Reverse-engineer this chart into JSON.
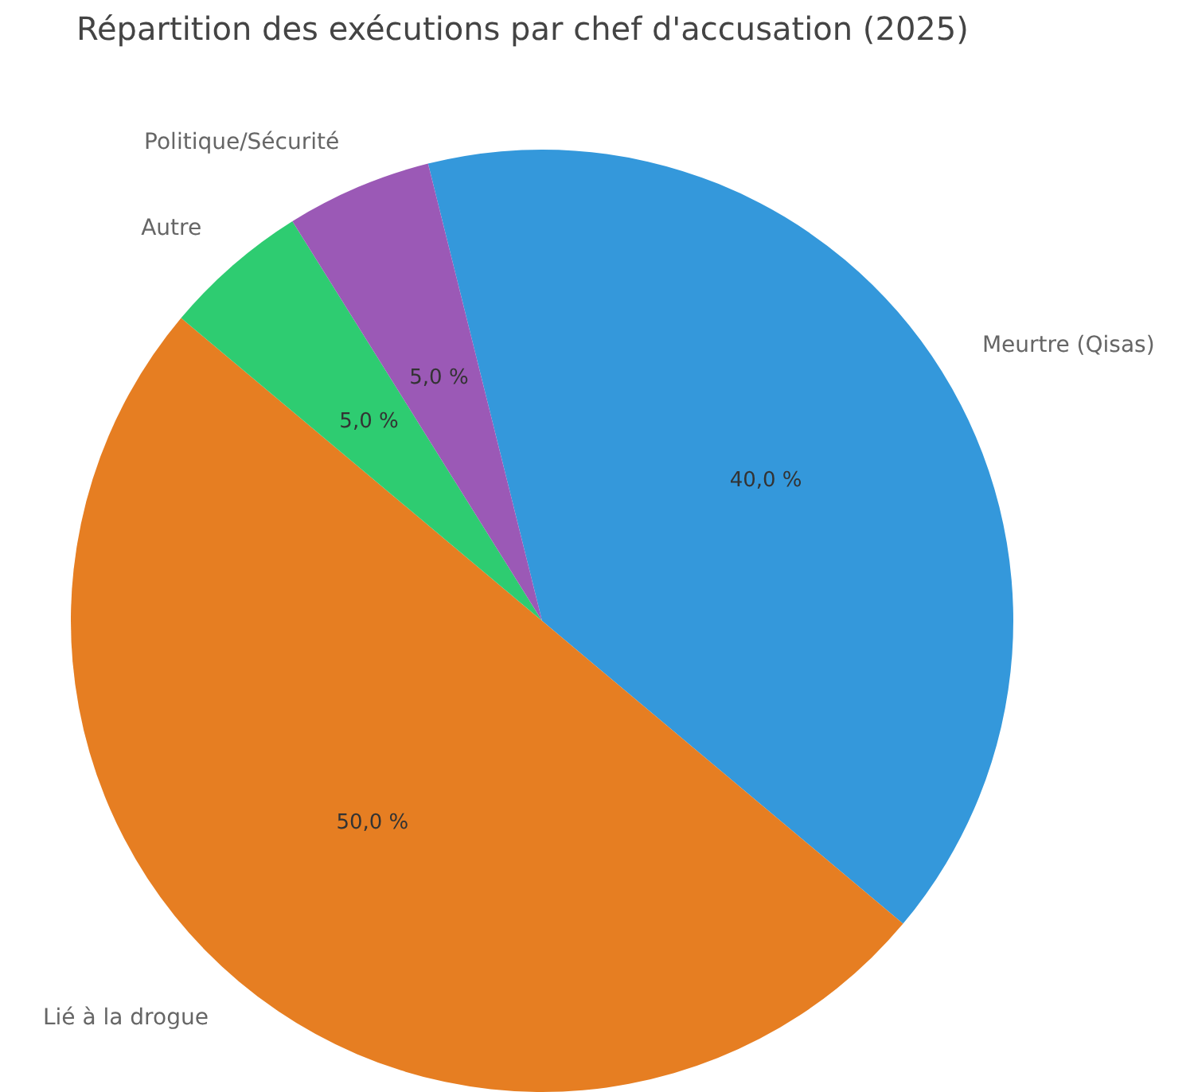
{
  "chart_data": {
    "type": "pie",
    "title": "Répartition des exécutions par chef d'accusation (2025)",
    "categories": [
      "Meurtre (Qisas)",
      "Lié à la drogue",
      "Autre",
      "Politique/Sécurité"
    ],
    "values": [
      40,
      50,
      5,
      5
    ],
    "value_labels": [
      "40,0 %",
      "50,0 %",
      "5,0 %",
      "5,0 %"
    ],
    "colors": [
      "#3498db",
      "#e67e22",
      "#2ecc71",
      "#9b59b6"
    ],
    "legend": false
  }
}
